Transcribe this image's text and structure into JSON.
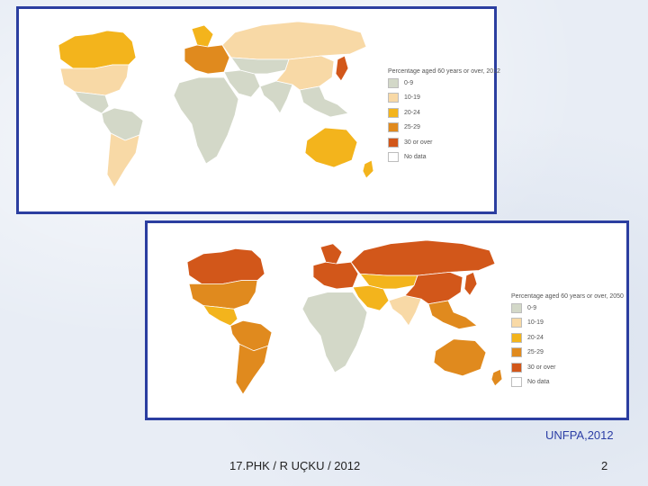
{
  "maps": [
    {
      "legend_title": "Percentage aged 60 years or over, 2012",
      "legend": [
        {
          "label": "0-9",
          "color": "#d3d8c8"
        },
        {
          "label": "10-19",
          "color": "#f8d9a6"
        },
        {
          "label": "20-24",
          "color": "#f3b41c"
        },
        {
          "label": "25-29",
          "color": "#e08a1e"
        },
        {
          "label": "30 or over",
          "color": "#d2571a"
        },
        {
          "label": "No data",
          "color": "#ffffff"
        }
      ],
      "regions": [
        {
          "name": "Greenland",
          "category": "No data"
        },
        {
          "name": "Canada",
          "category": "20-24"
        },
        {
          "name": "United States",
          "category": "10-19"
        },
        {
          "name": "Mexico and Central America",
          "category": "0-9"
        },
        {
          "name": "South America north",
          "category": "0-9"
        },
        {
          "name": "South America south",
          "category": "10-19"
        },
        {
          "name": "Europe north",
          "category": "20-24"
        },
        {
          "name": "Europe",
          "category": "25-29"
        },
        {
          "name": "Russia",
          "category": "10-19"
        },
        {
          "name": "Middle East",
          "category": "0-9"
        },
        {
          "name": "Central Asia",
          "category": "0-9"
        },
        {
          "name": "Africa",
          "category": "0-9"
        },
        {
          "name": "South Asia",
          "category": "0-9"
        },
        {
          "name": "China",
          "category": "10-19"
        },
        {
          "name": "Japan",
          "category": "30 or over"
        },
        {
          "name": "Southeast Asia",
          "category": "0-9"
        },
        {
          "name": "Australia",
          "category": "20-24"
        },
        {
          "name": "New Zealand",
          "category": "20-24"
        }
      ]
    },
    {
      "legend_title": "Percentage aged 60 years or over, 2050",
      "legend": [
        {
          "label": "0-9",
          "color": "#d3d8c8"
        },
        {
          "label": "10-19",
          "color": "#f8d9a6"
        },
        {
          "label": "20-24",
          "color": "#f3b41c"
        },
        {
          "label": "25-29",
          "color": "#e08a1e"
        },
        {
          "label": "30 or over",
          "color": "#d2571a"
        },
        {
          "label": "No data",
          "color": "#ffffff"
        }
      ],
      "regions": [
        {
          "name": "Greenland",
          "category": "No data"
        },
        {
          "name": "Canada",
          "category": "30 or over"
        },
        {
          "name": "United States",
          "category": "25-29"
        },
        {
          "name": "Mexico and Central America",
          "category": "20-24"
        },
        {
          "name": "South America north",
          "category": "25-29"
        },
        {
          "name": "South America south",
          "category": "25-29"
        },
        {
          "name": "Europe north",
          "category": "30 or over"
        },
        {
          "name": "Europe",
          "category": "30 or over"
        },
        {
          "name": "Russia",
          "category": "30 or over"
        },
        {
          "name": "Middle East",
          "category": "20-24"
        },
        {
          "name": "Central Asia",
          "category": "20-24"
        },
        {
          "name": "Africa",
          "category": "0-9"
        },
        {
          "name": "South Asia",
          "category": "10-19"
        },
        {
          "name": "China",
          "category": "30 or over"
        },
        {
          "name": "Japan",
          "category": "30 or over"
        },
        {
          "name": "Southeast Asia",
          "category": "25-29"
        },
        {
          "name": "Australia",
          "category": "25-29"
        },
        {
          "name": "New Zealand",
          "category": "25-29"
        }
      ]
    }
  ],
  "source": "UNFPA,2012",
  "footer": "17.PHK / R UÇKU / 2012",
  "page_number": "2"
}
